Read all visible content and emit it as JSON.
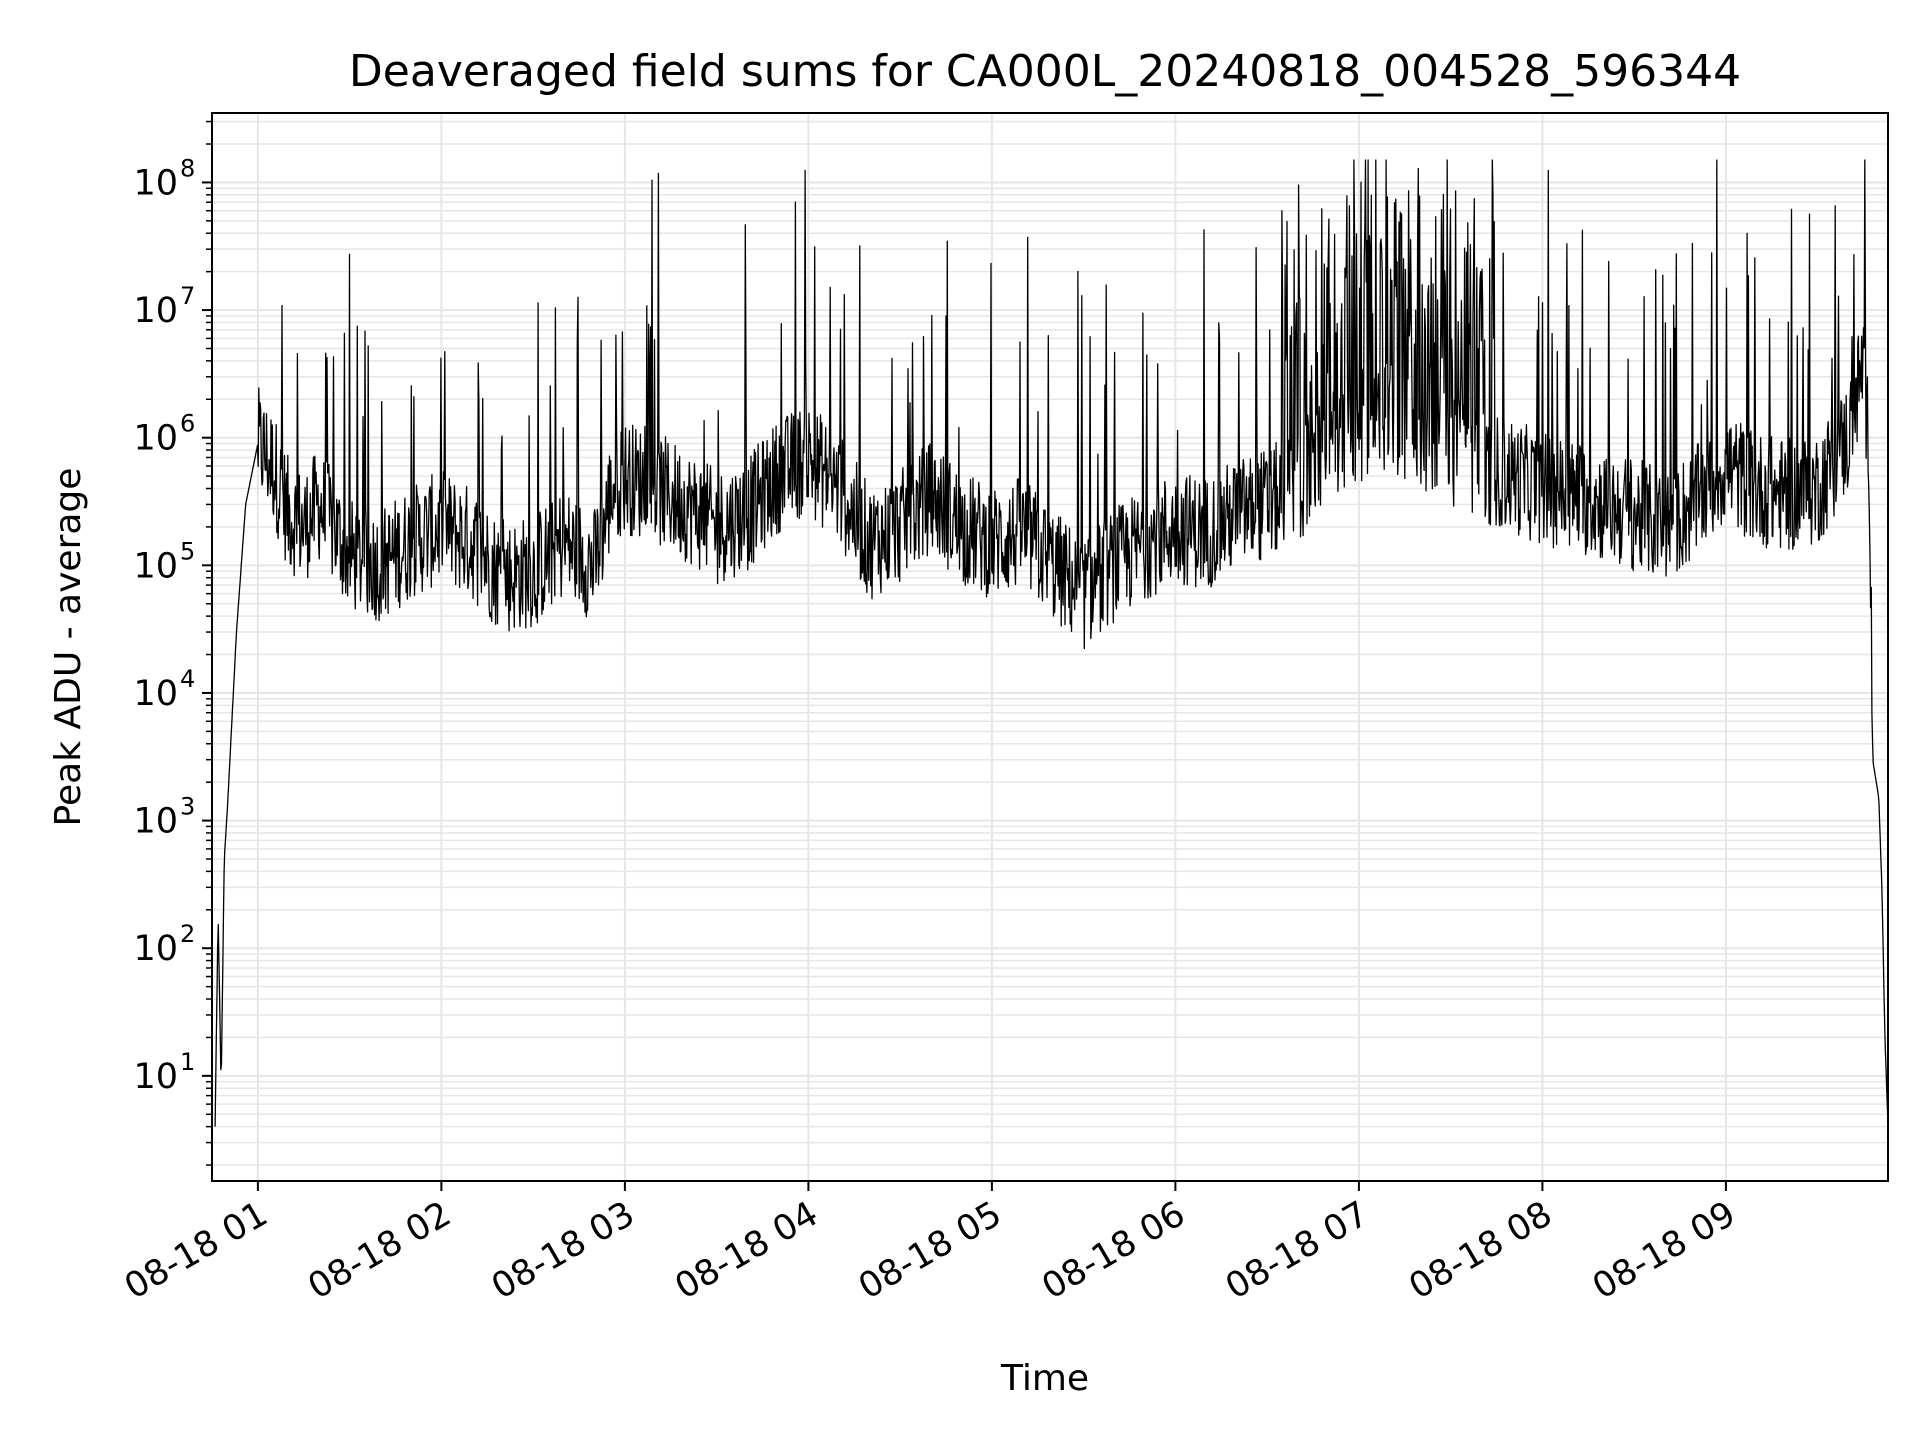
{
  "chart_data": {
    "type": "line",
    "title": "Deaveraged field sums for CA000L_20240818_004528_596344",
    "xlabel": "Time",
    "ylabel": "Peak ADU - average",
    "yscale": "log",
    "grid": true,
    "line_color": "#000000",
    "grid_color": "#e6e6e6",
    "ylim": [
      1.5,
      350000000
    ],
    "xlim": [
      "08-18 00:45",
      "08-18 09:53"
    ],
    "x_ticks": [
      "08-18 01",
      "08-18 02",
      "08-18 03",
      "08-18 04",
      "08-18 05",
      "08-18 06",
      "08-18 07",
      "08-18 08",
      "08-18 09"
    ],
    "y_ticks": [
      {
        "base": "10",
        "exp": "1"
      },
      {
        "base": "10",
        "exp": "2"
      },
      {
        "base": "10",
        "exp": "3"
      },
      {
        "base": "10",
        "exp": "4"
      },
      {
        "base": "10",
        "exp": "5"
      },
      {
        "base": "10",
        "exp": "6"
      },
      {
        "base": "10",
        "exp": "7"
      },
      {
        "base": "10",
        "exp": "8"
      }
    ],
    "series": [
      {
        "x": [
          "00:46",
          "00:47",
          "00:48",
          "00:49",
          "00:50",
          "00:53",
          "00:56",
          "01:00",
          "01:05",
          "01:10",
          "01:15",
          "01:20",
          "01:30",
          "01:40",
          "01:50",
          "02:00",
          "02:10",
          "02:20",
          "02:30",
          "02:40",
          "02:50",
          "02:56",
          "03:00",
          "03:10",
          "03:20",
          "03:30",
          "03:40",
          "03:50",
          "04:00",
          "04:10",
          "04:20",
          "04:30",
          "04:40",
          "04:50",
          "05:00",
          "05:10",
          "05:20",
          "05:30",
          "05:40",
          "05:50",
          "06:00",
          "06:10",
          "06:20",
          "06:30",
          "06:40",
          "06:50",
          "07:00",
          "07:10",
          "07:20",
          "07:30",
          "07:40",
          "07:50",
          "08:00",
          "08:10",
          "08:20",
          "08:30",
          "08:40",
          "08:50",
          "09:00",
          "09:10",
          "09:20",
          "09:30",
          "09:40",
          "09:45",
          "09:47",
          "09:48",
          "09:50",
          "09:51",
          "09:52",
          "09:53"
        ],
        "y": [
          4,
          180,
          8,
          500,
          1200,
          30000,
          300000,
          900000,
          600000,
          250000,
          200000,
          300000,
          120000,
          100000,
          150000,
          200000,
          150000,
          80000,
          90000,
          150000,
          100000,
          400000,
          500000,
          400000,
          300000,
          200000,
          250000,
          500000,
          700000,
          400000,
          150000,
          200000,
          350000,
          200000,
          150000,
          180000,
          100000,
          60000,
          100000,
          150000,
          200000,
          180000,
          250000,
          300000,
          400000,
          800000,
          1200000,
          1500000,
          1000000,
          800000,
          600000,
          500000,
          400000,
          350000,
          300000,
          250000,
          200000,
          300000,
          600000,
          400000,
          350000,
          400000,
          1000000,
          4000000,
          600000,
          3000,
          1500,
          300,
          20,
          4
        ]
      }
    ]
  }
}
